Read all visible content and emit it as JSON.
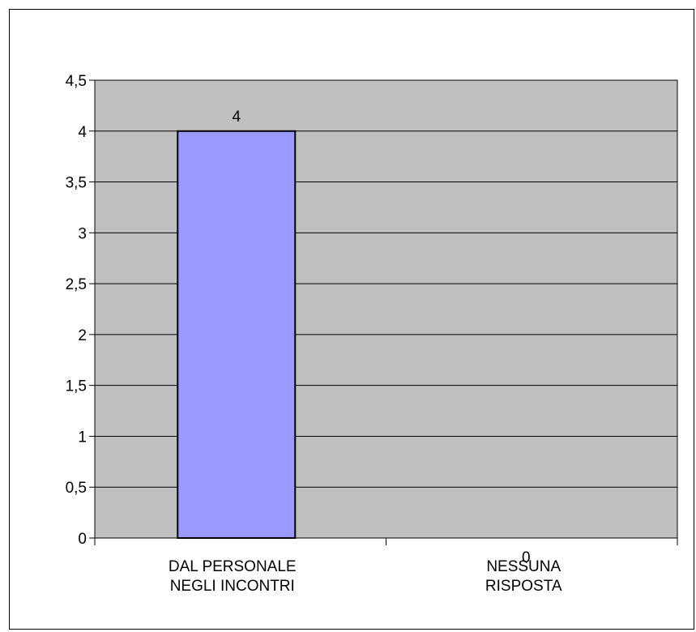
{
  "chart_data": {
    "type": "bar",
    "categories": [
      [
        "DAL PERSONALE",
        "NEGLI INCONTRI"
      ],
      [
        "NESSUNA",
        "RISPOSTA"
      ]
    ],
    "values": [
      4,
      0
    ],
    "data_labels": [
      "4",
      "0"
    ],
    "title": "",
    "xlabel": "",
    "ylabel": "",
    "ylim": [
      0,
      4.5
    ],
    "yticks": [
      0,
      0.5,
      1,
      1.5,
      2,
      2.5,
      3,
      3.5,
      4,
      4.5
    ],
    "ytick_labels": [
      "0",
      "0,5",
      "1",
      "1,5",
      "2",
      "2,5",
      "3",
      "3,5",
      "4",
      "4,5"
    ],
    "grid": true,
    "legend": "none",
    "colors": {
      "bar_fill": "#9999ff",
      "bar_stroke": "#000000",
      "plot_background": "#c0c0c0",
      "gridline": "#000000",
      "axis": "#000000"
    }
  }
}
